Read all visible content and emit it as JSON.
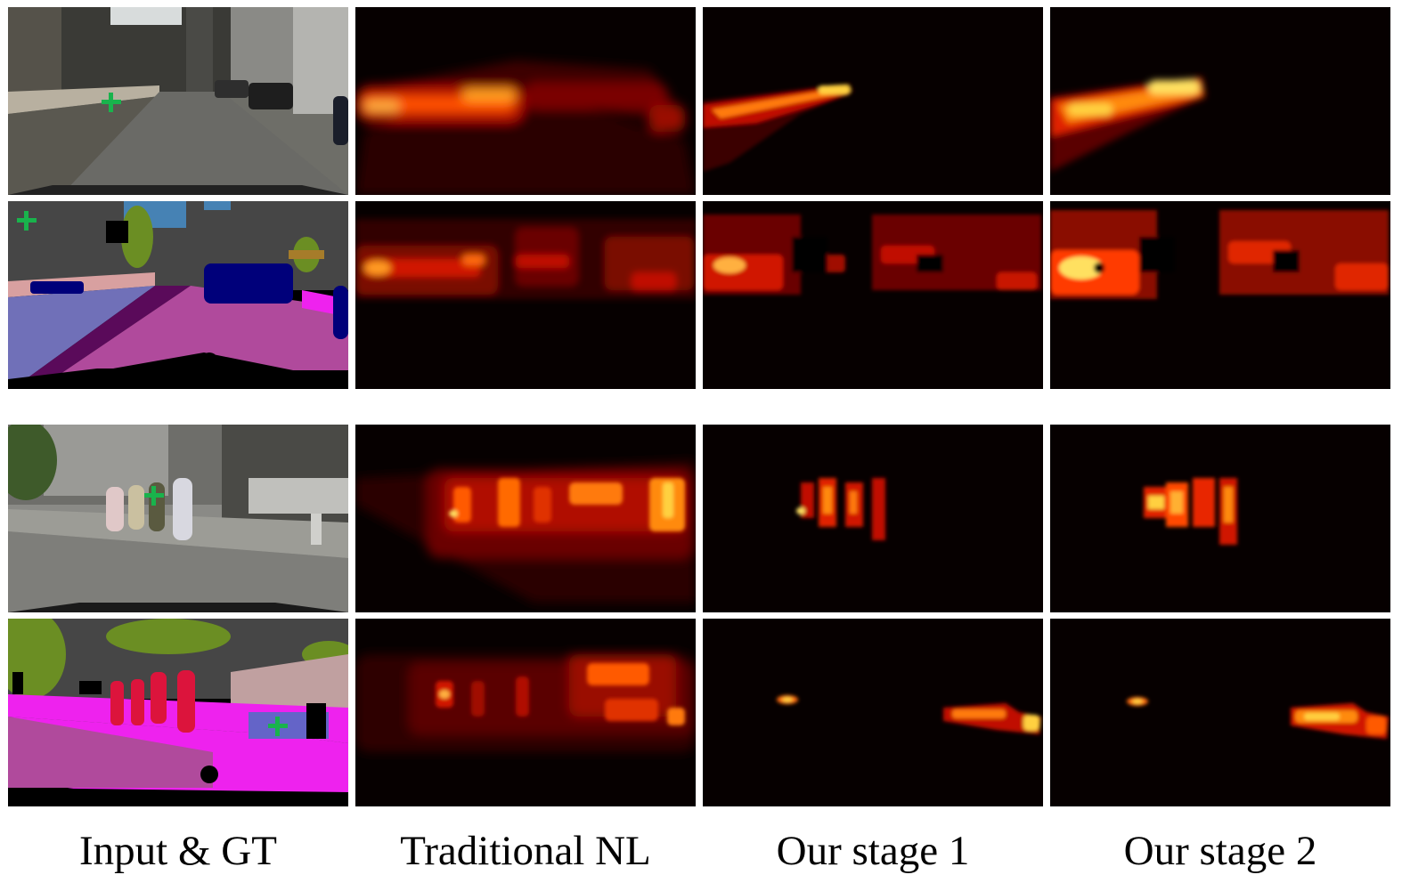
{
  "figure": {
    "columns": [
      "Input & GT",
      "Traditional NL",
      "Our stage 1",
      "Our stage 2"
    ],
    "groups": [
      {
        "rows": [
          "input-photo",
          "ground-truth-segmentation"
        ],
        "query_point_marker": "green-plus-icon"
      },
      {
        "rows": [
          "input-photo",
          "ground-truth-segmentation"
        ],
        "query_point_marker": "green-plus-icon"
      }
    ],
    "colors": {
      "heat_low": "#060000",
      "heat_mid": "#d01000",
      "heat_high": "#ffe060",
      "marker": "#19b34c",
      "seg_road": "#b04a9c",
      "seg_sidewalk": "#ee22ee",
      "seg_car": "#00007a",
      "seg_person": "#dc143c",
      "seg_vegetation": "#6b8e23",
      "seg_building": "#464646",
      "seg_sky": "#4682b4"
    }
  }
}
